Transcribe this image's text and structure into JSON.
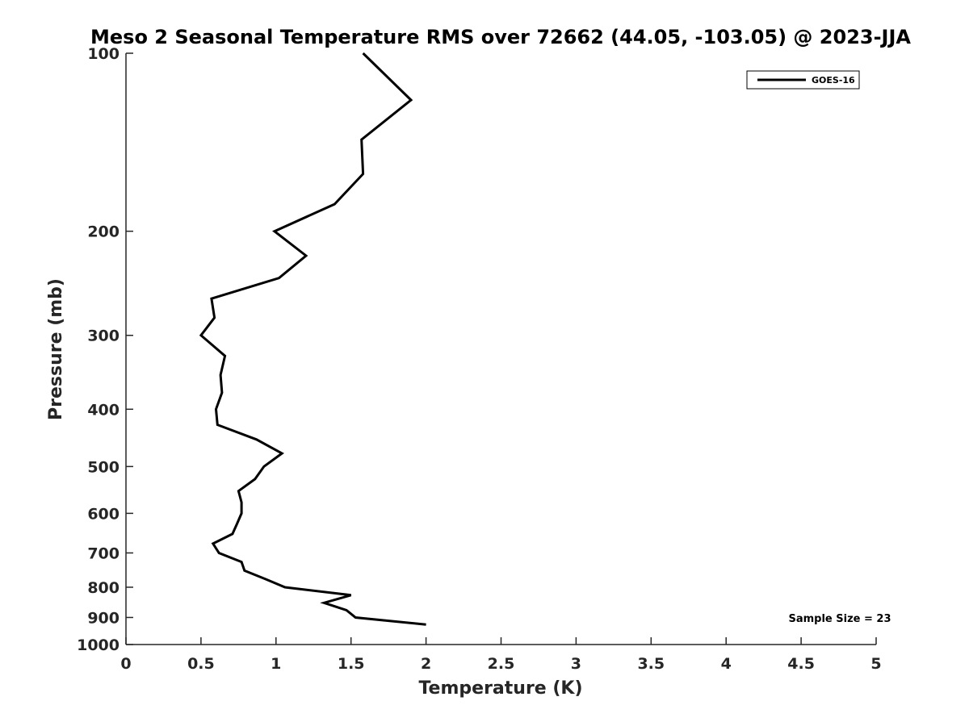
{
  "chart_data": {
    "type": "line",
    "title": "Meso 2 Seasonal Temperature RMS over 72662 (44.05, -103.05) @ 2023-JJA",
    "xlabel": "Temperature (K)",
    "ylabel": "Pressure (mb)",
    "xlim": [
      0,
      5
    ],
    "ylim": [
      1000,
      100
    ],
    "y_scale": "log",
    "y_reversed": true,
    "x_ticks": [
      0,
      0.5,
      1,
      1.5,
      2,
      2.5,
      3,
      3.5,
      4,
      4.5,
      5
    ],
    "x_tick_labels": [
      "0",
      "0.5",
      "1",
      "1.5",
      "2",
      "2.5",
      "3",
      "3.5",
      "4",
      "4.5",
      "5"
    ],
    "y_ticks": [
      100,
      200,
      300,
      400,
      500,
      600,
      700,
      800,
      900,
      1000
    ],
    "y_tick_labels": [
      "100",
      "200",
      "300",
      "400",
      "500",
      "600",
      "700",
      "800",
      "900",
      "1000"
    ],
    "grid": false,
    "legend_position": "top-right",
    "series": [
      {
        "name": "GOES-16",
        "color": "#000000",
        "points": [
          {
            "x": 1.58,
            "p": 100
          },
          {
            "x": 1.9,
            "p": 120
          },
          {
            "x": 1.57,
            "p": 140
          },
          {
            "x": 1.58,
            "p": 160
          },
          {
            "x": 1.39,
            "p": 180
          },
          {
            "x": 0.99,
            "p": 200
          },
          {
            "x": 1.2,
            "p": 220
          },
          {
            "x": 1.02,
            "p": 240
          },
          {
            "x": 0.57,
            "p": 260
          },
          {
            "x": 0.59,
            "p": 280
          },
          {
            "x": 0.5,
            "p": 300
          },
          {
            "x": 0.66,
            "p": 325
          },
          {
            "x": 0.63,
            "p": 350
          },
          {
            "x": 0.64,
            "p": 375
          },
          {
            "x": 0.6,
            "p": 400
          },
          {
            "x": 0.61,
            "p": 425
          },
          {
            "x": 0.87,
            "p": 450
          },
          {
            "x": 1.04,
            "p": 475
          },
          {
            "x": 0.92,
            "p": 500
          },
          {
            "x": 0.86,
            "p": 525
          },
          {
            "x": 0.75,
            "p": 550
          },
          {
            "x": 0.77,
            "p": 575
          },
          {
            "x": 0.77,
            "p": 600
          },
          {
            "x": 0.74,
            "p": 625
          },
          {
            "x": 0.71,
            "p": 650
          },
          {
            "x": 0.58,
            "p": 675
          },
          {
            "x": 0.62,
            "p": 700
          },
          {
            "x": 0.77,
            "p": 725
          },
          {
            "x": 0.79,
            "p": 750
          },
          {
            "x": 0.93,
            "p": 775
          },
          {
            "x": 1.06,
            "p": 800
          },
          {
            "x": 1.5,
            "p": 825
          },
          {
            "x": 1.32,
            "p": 850
          },
          {
            "x": 1.47,
            "p": 875
          },
          {
            "x": 1.53,
            "p": 900
          },
          {
            "x": 2.0,
            "p": 925
          }
        ]
      }
    ],
    "annotations": [
      "Sample Size = 23"
    ]
  }
}
